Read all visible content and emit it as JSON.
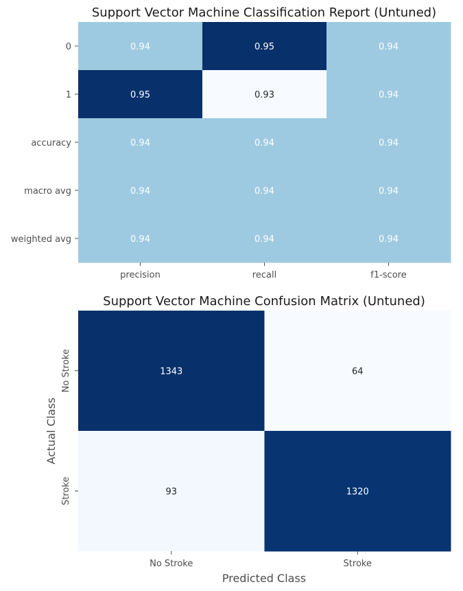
{
  "chart_data": [
    {
      "type": "heatmap",
      "title": "Support Vector Machine Classification Report (Untuned)",
      "xlabel": "",
      "ylabel": "",
      "x_categories": [
        "precision",
        "recall",
        "f1-score"
      ],
      "y_categories": [
        "0",
        "1",
        "accuracy",
        "macro avg",
        "weighted avg"
      ],
      "values": [
        [
          0.94,
          0.95,
          0.94
        ],
        [
          0.95,
          0.93,
          0.94
        ],
        [
          0.94,
          0.94,
          0.94
        ],
        [
          0.94,
          0.94,
          0.94
        ],
        [
          0.94,
          0.94,
          0.94
        ]
      ],
      "labels": [
        [
          "0.94",
          "0.95",
          "0.94"
        ],
        [
          "0.95",
          "0.93",
          "0.94"
        ],
        [
          "0.94",
          "0.94",
          "0.94"
        ],
        [
          "0.94",
          "0.94",
          "0.94"
        ],
        [
          "0.94",
          "0.94",
          "0.94"
        ]
      ],
      "colormap": "Blues",
      "vmin": 0.934,
      "vmax": 0.95,
      "colorbar": false
    },
    {
      "type": "heatmap",
      "title": "Support Vector Machine Confusion Matrix (Untuned)",
      "xlabel": "Predicted Class",
      "ylabel": "Actual Class",
      "x_categories": [
        "No Stroke",
        "Stroke"
      ],
      "y_categories": [
        "No Stroke",
        "Stroke"
      ],
      "values": [
        [
          1343,
          64
        ],
        [
          93,
          1320
        ]
      ],
      "labels": [
        [
          "1343",
          "64"
        ],
        [
          "93",
          "1320"
        ]
      ],
      "colormap": "Blues",
      "vmin": 64,
      "vmax": 1343,
      "colorbar": false
    }
  ]
}
